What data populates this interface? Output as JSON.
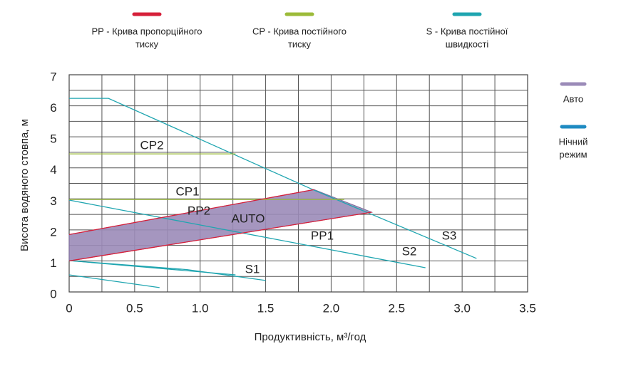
{
  "chart_data": {
    "type": "line",
    "legend": [
      {
        "lines": [
          "PP -  Крива пропорційного",
          "тиску"
        ],
        "color": "#d6203a"
      },
      {
        "lines": [
          "CP - Крива постійного",
          "тиску"
        ],
        "color": "#9cbb3a"
      },
      {
        "lines": [
          "S - Крива постійної",
          "швидкості"
        ],
        "color": "#1fa5b0"
      }
    ],
    "side_legend": [
      {
        "lines": [
          "Авто"
        ],
        "color": "#9b8bb8"
      },
      {
        "lines": [
          "Нічний",
          "режим"
        ],
        "color": "#1f8bc2"
      }
    ],
    "x_label": "Продуктивність, м³/год",
    "y_label": "Висота водяного стовпа, м",
    "xlim": [
      0,
      3.5
    ],
    "ylim": [
      0,
      7
    ],
    "xticks": [
      0,
      0.5,
      {
        "value": 1,
        "label": "1.0"
      },
      1.5,
      {
        "value": 2,
        "label": "2.0"
      },
      2.5,
      {
        "value": 3,
        "label": "3.0"
      },
      3.5
    ],
    "yticks": [
      0,
      1,
      2,
      3,
      4,
      5,
      6,
      7
    ],
    "xgrid": [
      0.25,
      0.5,
      0.75,
      1,
      1.25,
      1.5,
      1.75,
      2,
      2.25,
      2.5,
      2.75,
      3,
      3.25
    ],
    "ygrid": [
      0.5,
      1,
      1.5,
      2,
      2.5,
      3,
      3.5,
      4,
      4.5,
      5,
      5.5,
      6,
      6.5
    ],
    "series": [
      {
        "name": "S3",
        "color": "#1fa5b0",
        "x": [
          0,
          0.3,
          1.87,
          3.11
        ],
        "values": [
          6.24,
          6.24,
          3.28,
          1.08
        ]
      },
      {
        "name": "S2",
        "color": "#1fa5b0",
        "x": [
          0,
          2.72
        ],
        "values": [
          2.96,
          0.78
        ]
      },
      {
        "name": "S1",
        "color": "#1fa5b0",
        "x": [
          0,
          0.9,
          1.5
        ],
        "values": [
          1.01,
          0.72,
          0.37
        ]
      },
      {
        "color": "#1fa5b0",
        "x": [
          0,
          1.27
        ],
        "values": [
          1.01,
          0.55
        ]
      },
      {
        "color": "#1fa5b0",
        "x": [
          0,
          0.69
        ],
        "values": [
          0.55,
          0.14
        ]
      },
      {
        "name": "CP2",
        "color": "#9cbb3a",
        "x": [
          0,
          1.27
        ],
        "values": [
          4.45,
          4.45
        ]
      },
      {
        "name": "CP1",
        "color": "#9cbb3a",
        "x": [
          0,
          2.1
        ],
        "values": [
          2.98,
          2.98
        ]
      },
      {
        "name": "PP2",
        "color": "#d6203a",
        "x": [
          0,
          1.87
        ],
        "values": [
          1.85,
          3.3
        ]
      },
      {
        "name": "PP1",
        "color": "#d6203a",
        "x": [
          0,
          2.31
        ],
        "values": [
          1.0,
          2.57
        ]
      },
      {
        "name": "AUTO",
        "kind": "area",
        "color": "#9b8bb8",
        "x": [
          0,
          1.87,
          2.31,
          0
        ],
        "values": [
          1.85,
          3.3,
          2.57,
          1.0
        ]
      }
    ]
  }
}
